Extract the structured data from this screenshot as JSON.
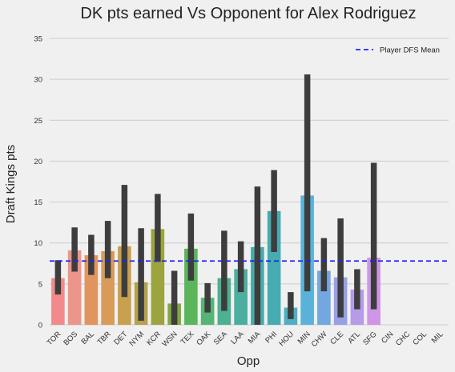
{
  "chart_data": {
    "type": "bar",
    "title": "DK pts earned Vs Opponent for Alex Rodriguez",
    "xlabel": "Opp",
    "ylabel": "Draft Kings pts",
    "ylim": [
      0,
      35
    ],
    "yticks": [
      0,
      5,
      10,
      15,
      20,
      25,
      30,
      35
    ],
    "grid": true,
    "legend_position": "top-right",
    "categories": [
      "TOR",
      "BOS",
      "BAL",
      "TBR",
      "DET",
      "NYM",
      "KCR",
      "WSN",
      "TEX",
      "OAK",
      "SEA",
      "LAA",
      "MIA",
      "PHI",
      "HOU",
      "MIN",
      "CHW",
      "CLE",
      "ATL",
      "SFG",
      "CIN",
      "CHC",
      "COL",
      "MIL"
    ],
    "values": [
      5.7,
      9.1,
      8.5,
      9.0,
      9.6,
      5.2,
      11.7,
      2.6,
      9.3,
      3.3,
      5.7,
      6.8,
      9.5,
      13.9,
      2.1,
      15.8,
      6.6,
      5.8,
      4.3,
      8.2,
      null,
      null,
      null,
      null
    ],
    "error_low": [
      3.7,
      6.5,
      6.1,
      5.7,
      3.4,
      0.5,
      7.7,
      0.0,
      5.4,
      1.5,
      1.7,
      4.0,
      0.0,
      8.9,
      0.7,
      4.1,
      4.1,
      0.9,
      1.9,
      1.9,
      null,
      null,
      null,
      null
    ],
    "error_high": [
      7.9,
      11.9,
      11.0,
      12.7,
      17.1,
      11.8,
      16.0,
      6.6,
      13.6,
      5.1,
      11.5,
      10.2,
      16.9,
      18.9,
      4.0,
      30.6,
      10.6,
      13.0,
      6.8,
      19.8,
      null,
      null,
      null,
      null
    ],
    "bar_colors": [
      "#f28a8c",
      "#ec958a",
      "#e2945f",
      "#d89c5a",
      "#c9a04f",
      "#b5a24b",
      "#9ba43d",
      "#80a83e",
      "#5bb55b",
      "#55b476",
      "#4cb092",
      "#4bae9f",
      "#49aaa9",
      "#47abb2",
      "#4dafc3",
      "#5ab2d8",
      "#74a7df",
      "#97a0e6",
      "#b79ae8",
      "#cf95e6",
      "#e28ed8",
      "#ed8cc5",
      "#ef8cb1",
      "#f08aa0"
    ],
    "mean": {
      "value": 7.8,
      "label": "Player DFS Mean",
      "color": "#2222ee"
    }
  }
}
